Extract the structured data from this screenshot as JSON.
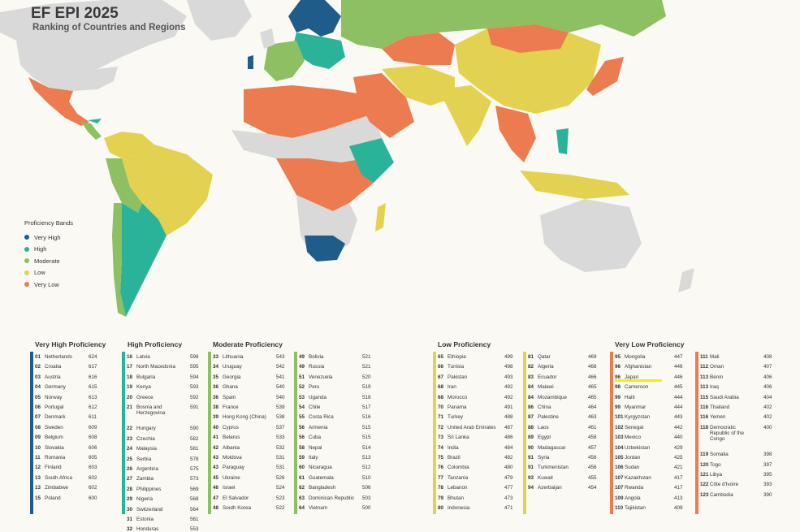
{
  "title": "EF EPI 2025",
  "subtitle": "Ranking of Countries and Regions",
  "colors": {
    "very_high": "#1f5c8a",
    "high": "#2bb39a",
    "moderate": "#8cc063",
    "low": "#e3d24f",
    "very_low": "#ec7b4f",
    "no_data": "#d9d9d9",
    "ocean": "#fbf9f3"
  },
  "legend": {
    "title": "Proficiency Bands",
    "items": [
      {
        "label": "Very High",
        "color": "#1f5c8a"
      },
      {
        "label": "High",
        "color": "#2bb39a"
      },
      {
        "label": "Moderate",
        "color": "#8cc063"
      },
      {
        "label": "Low",
        "color": "#e3d24f"
      },
      {
        "label": "Very Low",
        "color": "#ec7b4f"
      }
    ]
  },
  "chart_data": {
    "type": "table",
    "groups": [
      {
        "title": "Very High Proficiency",
        "color": "#1f5c8a",
        "rows": [
          [
            "01",
            "Netherlands",
            "624"
          ],
          [
            "02",
            "Croatia",
            "617"
          ],
          [
            "03",
            "Austria",
            "616"
          ],
          [
            "04",
            "Germany",
            "615"
          ],
          [
            "05",
            "Norway",
            "613"
          ],
          [
            "06",
            "Portugal",
            "612"
          ],
          [
            "07",
            "Denmark",
            "611"
          ],
          [
            "08",
            "Sweden",
            "609"
          ],
          [
            "09",
            "Belgium",
            "608"
          ],
          [
            "10",
            "Slovakia",
            "606"
          ],
          [
            "11",
            "Romania",
            "605"
          ],
          [
            "12",
            "Finland",
            "603"
          ],
          [
            "13",
            "South Africa",
            "602"
          ],
          [
            "13",
            "Zimbabwe",
            "602"
          ],
          [
            "15",
            "Poland",
            "600"
          ]
        ]
      },
      {
        "title": "High Proficiency",
        "color": "#2bb39a",
        "rows": [
          [
            "16",
            "Latvia",
            "598"
          ],
          [
            "17",
            "North Macedonia",
            "595"
          ],
          [
            "18",
            "Bulgaria",
            "594"
          ],
          [
            "19",
            "Kenya",
            "593"
          ],
          [
            "20",
            "Greece",
            "592"
          ],
          [
            "21",
            "Bosnia and Herzegovina",
            "591"
          ],
          [
            "22",
            "Hungary",
            "590"
          ],
          [
            "23",
            "Czechia",
            "582"
          ],
          [
            "24",
            "Malaysia",
            "581"
          ],
          [
            "25",
            "Serbia",
            "578"
          ],
          [
            "26",
            "Argentina",
            "575"
          ],
          [
            "27",
            "Zambia",
            "573"
          ],
          [
            "28",
            "Philippines",
            "569"
          ],
          [
            "29",
            "Nigeria",
            "568"
          ],
          [
            "30",
            "Switzerland",
            "564"
          ],
          [
            "31",
            "Estonia",
            "561"
          ],
          [
            "32",
            "Honduras",
            "553"
          ]
        ]
      },
      {
        "title": "Moderate Proficiency",
        "color": "#8cc063",
        "rows": [
          [
            "33",
            "Lithuania",
            "543"
          ],
          [
            "34",
            "Uruguay",
            "542"
          ],
          [
            "35",
            "Georgia",
            "541"
          ],
          [
            "36",
            "Ghana",
            "540"
          ],
          [
            "36",
            "Spain",
            "540"
          ],
          [
            "38",
            "France",
            "539"
          ],
          [
            "39",
            "Hong Kong (China)",
            "538"
          ],
          [
            "40",
            "Cyprus",
            "537"
          ],
          [
            "41",
            "Belarus",
            "533"
          ],
          [
            "42",
            "Albania",
            "532"
          ],
          [
            "43",
            "Moldova",
            "531"
          ],
          [
            "43",
            "Paraguay",
            "531"
          ],
          [
            "45",
            "Ukraine",
            "526"
          ],
          [
            "46",
            "Israel",
            "524"
          ],
          [
            "47",
            "El Salvador",
            "523"
          ],
          [
            "48",
            "South Korea",
            "522"
          ],
          [
            "49",
            "Bolivia",
            "521"
          ],
          [
            "49",
            "Russia",
            "521"
          ],
          [
            "51",
            "Venezuela",
            "520"
          ],
          [
            "52",
            "Peru",
            "519"
          ],
          [
            "53",
            "Uganda",
            "518"
          ],
          [
            "54",
            "Chile",
            "517"
          ],
          [
            "55",
            "Costa Rica",
            "516"
          ],
          [
            "56",
            "Armenia",
            "515"
          ],
          [
            "56",
            "Cuba",
            "515"
          ],
          [
            "58",
            "Nepal",
            "514"
          ],
          [
            "59",
            "Italy",
            "513"
          ],
          [
            "60",
            "Nicaragua",
            "512"
          ],
          [
            "61",
            "Guatemala",
            "510"
          ],
          [
            "62",
            "Bangladesh",
            "506"
          ],
          [
            "63",
            "Dominican Republic",
            "503"
          ],
          [
            "64",
            "Vietnam",
            "500"
          ]
        ]
      },
      {
        "title": "Low Proficiency",
        "color": "#e3d24f",
        "rows": [
          [
            "65",
            "Ethiopia",
            "499"
          ],
          [
            "66",
            "Tunisia",
            "498"
          ],
          [
            "67",
            "Pakistan",
            "493"
          ],
          [
            "68",
            "Iran",
            "492"
          ],
          [
            "68",
            "Morocco",
            "492"
          ],
          [
            "70",
            "Panama",
            "491"
          ],
          [
            "71",
            "Turkey",
            "488"
          ],
          [
            "72",
            "United Arab Emirates",
            "487"
          ],
          [
            "73",
            "Sri Lanka",
            "486"
          ],
          [
            "74",
            "India",
            "484"
          ],
          [
            "75",
            "Brazil",
            "482"
          ],
          [
            "76",
            "Colombia",
            "480"
          ],
          [
            "77",
            "Tanzania",
            "479"
          ],
          [
            "78",
            "Lebanon",
            "477"
          ],
          [
            "79",
            "Bhutan",
            "473"
          ],
          [
            "80",
            "Indonesia",
            "471"
          ],
          [
            "81",
            "Qatar",
            "469"
          ],
          [
            "82",
            "Algeria",
            "468"
          ],
          [
            "83",
            "Ecuador",
            "466"
          ],
          [
            "84",
            "Malawi",
            "465"
          ],
          [
            "84",
            "Mozambique",
            "465"
          ],
          [
            "86",
            "China",
            "464"
          ],
          [
            "87",
            "Palestine",
            "463"
          ],
          [
            "88",
            "Laos",
            "461"
          ],
          [
            "89",
            "Egypt",
            "458"
          ],
          [
            "90",
            "Madagascar",
            "457"
          ],
          [
            "91",
            "Syria",
            "456"
          ],
          [
            "91",
            "Turkmenistan",
            "456"
          ],
          [
            "93",
            "Kuwait",
            "455"
          ],
          [
            "94",
            "Azerbaijan",
            "454"
          ]
        ]
      },
      {
        "title": "Very Low Proficiency",
        "color": "#ec7b4f",
        "rows": [
          [
            "95",
            "Mongolia",
            "447"
          ],
          [
            "96",
            "Afghanistan",
            "446"
          ],
          [
            "96",
            "Japan",
            "446"
          ],
          [
            "98",
            "Cameroon",
            "445"
          ],
          [
            "99",
            "Haiti",
            "444"
          ],
          [
            "99",
            "Myanmar",
            "444"
          ],
          [
            "101",
            "Kyrgyzstan",
            "443"
          ],
          [
            "102",
            "Senegal",
            "442"
          ],
          [
            "103",
            "Mexico",
            "440"
          ],
          [
            "104",
            "Uzbekistan",
            "429"
          ],
          [
            "105",
            "Jordan",
            "425"
          ],
          [
            "106",
            "Sudan",
            "421"
          ],
          [
            "107",
            "Kazakhstan",
            "417"
          ],
          [
            "107",
            "Rwanda",
            "417"
          ],
          [
            "109",
            "Angola",
            "413"
          ],
          [
            "110",
            "Tajikistan",
            "409"
          ],
          [
            "111",
            "Mali",
            "408"
          ],
          [
            "112",
            "Oman",
            "407"
          ],
          [
            "113",
            "Benin",
            "406"
          ],
          [
            "113",
            "Iraq",
            "406"
          ],
          [
            "115",
            "Saudi Arabia",
            "404"
          ],
          [
            "116",
            "Thailand",
            "402"
          ],
          [
            "116",
            "Yemen",
            "402"
          ],
          [
            "118",
            "Democratic Republic of the Congo",
            "400"
          ],
          [
            "119",
            "Somalia",
            "398"
          ],
          [
            "120",
            "Togo",
            "397"
          ],
          [
            "121",
            "Libya",
            "395"
          ],
          [
            "122",
            "Côte d'Ivoire",
            "393"
          ],
          [
            "123",
            "Cambodia",
            "390"
          ]
        ]
      }
    ]
  }
}
